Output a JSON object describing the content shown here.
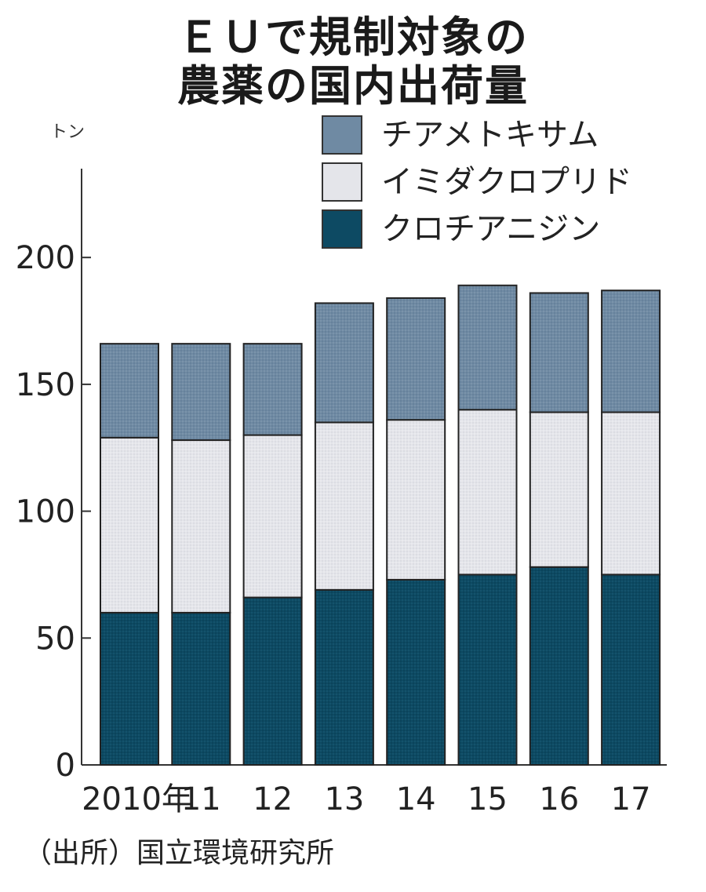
{
  "title": {
    "line1": "ＥＵで規制対象の",
    "line2": "農薬の国内出荷量"
  },
  "unit": "トン",
  "source": "（出所）国立環境研究所",
  "chart_data": {
    "type": "bar",
    "stacked": true,
    "categories": [
      "2010年",
      "11",
      "12",
      "13",
      "14",
      "15",
      "16",
      "17"
    ],
    "y_ticks": [
      0,
      50,
      100,
      150,
      200
    ],
    "ylim": [
      0,
      235
    ],
    "series": [
      {
        "name": "クロチアニジン",
        "color": "#0d4a63",
        "pattern": "dots-dark",
        "values": [
          60,
          60,
          66,
          69,
          73,
          75,
          78,
          75
        ]
      },
      {
        "name": "イミダクロプリド",
        "color": "#e4e5ea",
        "pattern": "dots-light",
        "values": [
          69,
          68,
          64,
          66,
          63,
          65,
          61,
          64
        ]
      },
      {
        "name": "チアメトキサム",
        "color": "#6f8aa3",
        "pattern": "dots-mid",
        "values": [
          37,
          38,
          36,
          47,
          48,
          49,
          47,
          48
        ]
      }
    ],
    "legend_order": [
      2,
      1,
      0
    ]
  }
}
